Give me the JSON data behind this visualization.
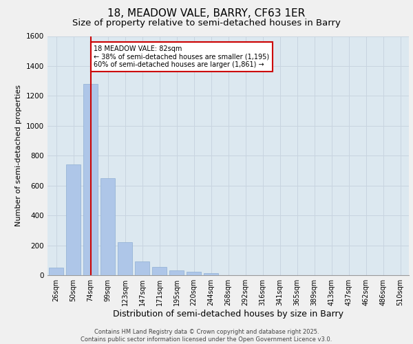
{
  "title": "18, MEADOW VALE, BARRY, CF63 1ER",
  "subtitle": "Size of property relative to semi-detached houses in Barry",
  "xlabel": "Distribution of semi-detached houses by size in Barry",
  "ylabel": "Number of semi-detached properties",
  "categories": [
    "26sqm",
    "50sqm",
    "74sqm",
    "99sqm",
    "123sqm",
    "147sqm",
    "171sqm",
    "195sqm",
    "220sqm",
    "244sqm",
    "268sqm",
    "292sqm",
    "316sqm",
    "341sqm",
    "365sqm",
    "389sqm",
    "413sqm",
    "437sqm",
    "462sqm",
    "486sqm",
    "510sqm"
  ],
  "values": [
    50,
    740,
    1280,
    650,
    220,
    90,
    55,
    30,
    22,
    15,
    0,
    0,
    0,
    0,
    0,
    0,
    0,
    0,
    0,
    0,
    0
  ],
  "bar_color": "#aec6e8",
  "bar_edge_color": "#8eafd4",
  "vline_x_index": 2,
  "vline_color": "#cc0000",
  "annotation_text": "18 MEADOW VALE: 82sqm\n← 38% of semi-detached houses are smaller (1,195)\n60% of semi-detached houses are larger (1,861) →",
  "annotation_box_color": "#cc0000",
  "annotation_bg": "#ffffff",
  "grid_color": "#c8d4e0",
  "bg_color": "#dce8f0",
  "fig_bg_color": "#f0f0f0",
  "ylim": [
    0,
    1600
  ],
  "yticks": [
    0,
    200,
    400,
    600,
    800,
    1000,
    1200,
    1400,
    1600
  ],
  "footer_line1": "Contains HM Land Registry data © Crown copyright and database right 2025.",
  "footer_line2": "Contains public sector information licensed under the Open Government Licence v3.0.",
  "title_fontsize": 11,
  "subtitle_fontsize": 9.5,
  "tick_fontsize": 7,
  "ylabel_fontsize": 8,
  "xlabel_fontsize": 9,
  "footer_fontsize": 6
}
